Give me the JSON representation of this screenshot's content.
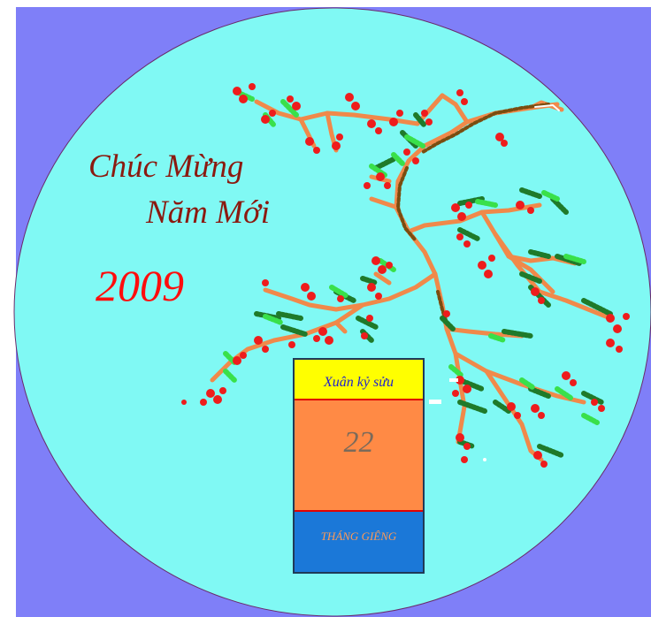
{
  "colors": {
    "frame_background": "#7f7ff8",
    "circle_fill": "#80f9f4",
    "branch": "#f0894a",
    "bark": "#7a4d10",
    "blossom": "#ee1c1c",
    "leaf_dark": "#1f7a2a",
    "leaf_light": "#39e04a",
    "calendar_header": "#ffff00",
    "calendar_body": "#ff8a45",
    "calendar_footer": "#1b78d8"
  },
  "greeting": {
    "line1": "Chúc Mừng",
    "line2": "Năm Mới",
    "year": "2009"
  },
  "calendar": {
    "header": "Xuân kỷ sửu",
    "day": "22",
    "month": "THÁNG GIÊNG"
  }
}
